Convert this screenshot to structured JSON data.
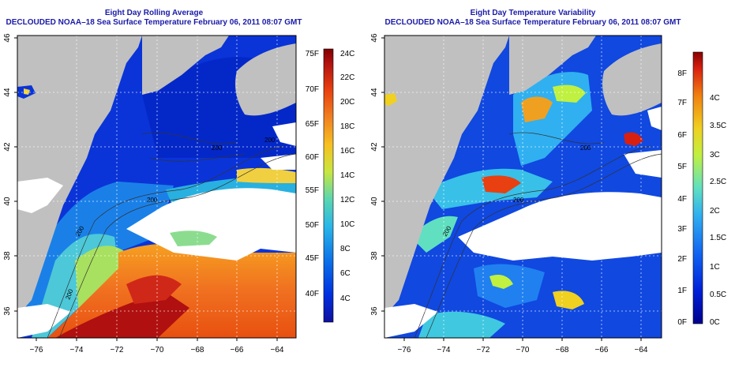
{
  "panels": [
    {
      "title_line1": "Eight Day Rolling Average",
      "title_line2": "DECLOUDED NOAA–18 Sea Surface Temperature February 06, 2011 08:07 GMT",
      "x_ticks": [
        "−76",
        "−74",
        "−72",
        "−70",
        "−68",
        "−66",
        "−64"
      ],
      "y_ticks": [
        "36",
        "38",
        "40",
        "42",
        "44",
        "46"
      ],
      "colorbar_left": [
        "75F",
        "70F",
        "65F",
        "60F",
        "55F",
        "50F",
        "45F",
        "40F"
      ],
      "colorbar_right": [
        "24C",
        "22C",
        "20C",
        "18C",
        "16C",
        "14C",
        "12C",
        "10C",
        "8C",
        "6C",
        "4C"
      ],
      "contour_labels": [
        "200",
        "200",
        "200",
        "200",
        "200"
      ]
    },
    {
      "title_line1": "Eight Day Temperature Variability",
      "title_line2": "DECLOUDED NOAA–18 Sea Surface Temperature February 06, 2011 08:07 GMT",
      "x_ticks": [
        "−76",
        "−74",
        "−72",
        "−70",
        "−68",
        "−66",
        "−64"
      ],
      "y_ticks": [
        "36",
        "38",
        "40",
        "42",
        "44",
        "46"
      ],
      "colorbar_left": [
        "8F",
        "7F",
        "6F",
        "5F",
        "4F",
        "3F",
        "2F",
        "1F",
        "0F"
      ],
      "colorbar_right": [
        "4C",
        "3.5C",
        "3C",
        "2.5C",
        "2C",
        "1.5C",
        "1C",
        "0.5C",
        "0C"
      ],
      "contour_labels": [
        "200",
        "200",
        "200"
      ]
    }
  ],
  "colors": {
    "land": "#c0c0c0",
    "cloud": "#ffffff",
    "title": "#1a1aa8",
    "sst_scale": [
      "#1010a0",
      "#0030e0",
      "#0a6fe8",
      "#29b6e8",
      "#5ad6b0",
      "#c8e640",
      "#f6c020",
      "#f08020",
      "#e84010",
      "#b01010",
      "#800000"
    ],
    "var_scale": [
      "#00008c",
      "#0020d8",
      "#1060f0",
      "#30b0f0",
      "#60e0c0",
      "#c0f040",
      "#f0d020",
      "#f08010",
      "#d82010",
      "#880000"
    ]
  }
}
